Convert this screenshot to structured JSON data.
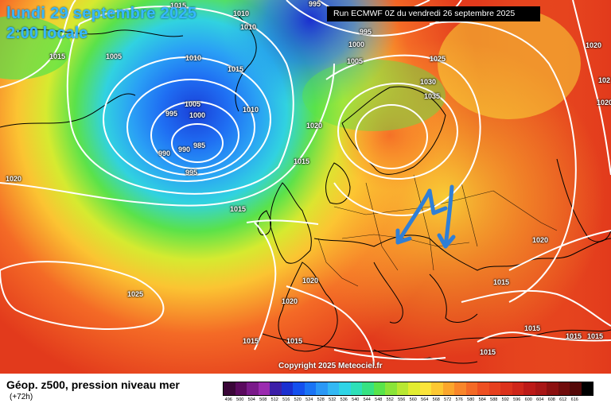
{
  "header": {
    "date": "lundi 29 septembre 2025",
    "time": "2:00 locale",
    "run": "Run ECMWF 0Z du vendredi 26 septembre 2025"
  },
  "copyright": "Copyright 2025 Meteociel.fr",
  "footer": {
    "title": "Géop. z500, pression niveau mer",
    "subtitle": "(+72h)"
  },
  "isobars": [
    {
      "text": "1015"
    },
    {
      "text": "1010"
    },
    {
      "text": "995"
    },
    {
      "text": "1010"
    },
    {
      "text": "995"
    },
    {
      "text": "1000"
    },
    {
      "text": "1005"
    },
    {
      "text": "1025"
    },
    {
      "text": "1020"
    },
    {
      "text": "1015"
    },
    {
      "text": "1005"
    },
    {
      "text": "1010"
    },
    {
      "text": "1015"
    },
    {
      "text": "1030"
    },
    {
      "text": "1035"
    },
    {
      "text": "1005"
    },
    {
      "text": "1000"
    },
    {
      "text": "995"
    },
    {
      "text": "1010"
    },
    {
      "text": "1020"
    },
    {
      "text": "990"
    },
    {
      "text": "990"
    },
    {
      "text": "985"
    },
    {
      "text": "995"
    },
    {
      "text": "1015"
    },
    {
      "text": "1020"
    },
    {
      "text": "1015"
    },
    {
      "text": "1020"
    },
    {
      "text": "1020"
    },
    {
      "text": "1025"
    },
    {
      "text": "1020"
    },
    {
      "text": "1015"
    },
    {
      "text": "1015"
    },
    {
      "text": "1015"
    },
    {
      "text": "1015"
    },
    {
      "text": "1015"
    },
    {
      "text": "1015"
    },
    {
      "text": "1015"
    },
    {
      "text": "1020"
    },
    {
      "text": "102"
    }
  ],
  "legend": {
    "colors": [
      "#3a0638",
      "#5a0a5e",
      "#7a1a8a",
      "#9b2bb0",
      "#3c1fa8",
      "#1a2fd0",
      "#1450ee",
      "#1a74f5",
      "#2a98f6",
      "#33b8f4",
      "#2fd4e6",
      "#2ee0b8",
      "#36e282",
      "#58e44a",
      "#8ae438",
      "#b8e832",
      "#e2ec30",
      "#fbe43a",
      "#fdc832",
      "#fba62c",
      "#f9862a",
      "#f46a26",
      "#ee5022",
      "#e6401e",
      "#dc321c",
      "#cf261a",
      "#bc1a18",
      "#a81616",
      "#8c1010",
      "#700c0c",
      "#540808",
      "#000000"
    ],
    "values": [
      "496",
      "500",
      "504",
      "508",
      "512",
      "516",
      "520",
      "524",
      "528",
      "532",
      "536",
      "540",
      "544",
      "548",
      "552",
      "556",
      "560",
      "564",
      "568",
      "572",
      "576",
      "580",
      "584",
      "588",
      "592",
      "596",
      "600",
      "604",
      "608",
      "612",
      "616",
      ""
    ]
  }
}
